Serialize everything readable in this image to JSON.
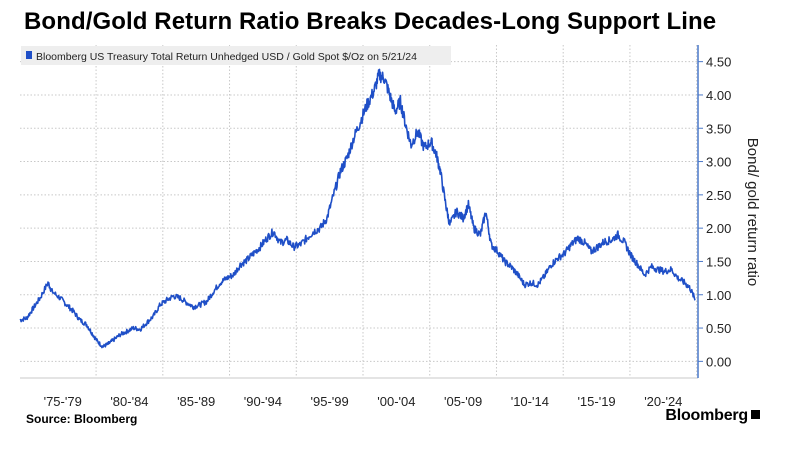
{
  "title": "Bond/Gold Return Ratio Breaks Decades-Long Support Line",
  "source": "Source: Bloomberg",
  "brand": "Bloomberg",
  "colors": {
    "series": "#1f4fc7",
    "axis": "#4a78c9",
    "grid": "#c8c8c8"
  },
  "chart_data": {
    "type": "line",
    "legend": "Bloomberg US Treasury Total Return Unhedged USD / Gold Spot $/Oz on 5/21/24",
    "legend_position": "top-left",
    "ylabel": "Bond/ gold return ratio",
    "y_axis_side": "right",
    "ylim": [
      -0.25,
      4.75
    ],
    "yticks": [
      0,
      0.5,
      1,
      1.5,
      2,
      2.5,
      3,
      3.5,
      4,
      4.5
    ],
    "ytick_labels": [
      "0.00",
      "0.50",
      "1.00",
      "1.50",
      "2.00",
      "2.50",
      "3.00",
      "3.50",
      "4.00",
      "4.50"
    ],
    "grid": true,
    "xlim": [
      1973.8,
      2024.6
    ],
    "x_categories": [
      "'75-'79",
      "'80-'84",
      "'85-'89",
      "'90-'94",
      "'95-'99",
      "'00-'04",
      "'05-'09",
      "'10-'14",
      "'15-'19",
      "'20-'24"
    ],
    "x_category_centers": [
      1977,
      1982,
      1987,
      1992,
      1997,
      2002,
      2007,
      2012,
      2017,
      2022
    ],
    "series": [
      {
        "name": "Bloomberg US Treasury Total Return Unhedged USD / Gold Spot $/Oz",
        "points": [
          [
            1973.8,
            0.62
          ],
          [
            1974.3,
            0.65
          ],
          [
            1974.8,
            0.8
          ],
          [
            1975.3,
            0.95
          ],
          [
            1975.9,
            1.18
          ],
          [
            1976.2,
            1.05
          ],
          [
            1976.8,
            0.95
          ],
          [
            1977.3,
            0.85
          ],
          [
            1977.8,
            0.75
          ],
          [
            1978.3,
            0.62
          ],
          [
            1978.8,
            0.55
          ],
          [
            1979.2,
            0.42
          ],
          [
            1979.6,
            0.3
          ],
          [
            1980.0,
            0.22
          ],
          [
            1980.4,
            0.26
          ],
          [
            1980.8,
            0.32
          ],
          [
            1981.3,
            0.4
          ],
          [
            1981.8,
            0.45
          ],
          [
            1982.3,
            0.5
          ],
          [
            1982.8,
            0.48
          ],
          [
            1983.3,
            0.58
          ],
          [
            1983.8,
            0.68
          ],
          [
            1984.3,
            0.85
          ],
          [
            1984.8,
            0.92
          ],
          [
            1985.3,
            0.98
          ],
          [
            1985.8,
            0.95
          ],
          [
            1986.3,
            0.88
          ],
          [
            1986.8,
            0.82
          ],
          [
            1987.3,
            0.85
          ],
          [
            1987.8,
            0.9
          ],
          [
            1988.3,
            1.05
          ],
          [
            1988.8,
            1.18
          ],
          [
            1989.3,
            1.25
          ],
          [
            1989.8,
            1.3
          ],
          [
            1990.3,
            1.45
          ],
          [
            1990.8,
            1.52
          ],
          [
            1991.3,
            1.62
          ],
          [
            1991.8,
            1.72
          ],
          [
            1992.3,
            1.85
          ],
          [
            1992.8,
            1.95
          ],
          [
            1993.3,
            1.78
          ],
          [
            1993.8,
            1.82
          ],
          [
            1994.3,
            1.72
          ],
          [
            1994.8,
            1.75
          ],
          [
            1995.3,
            1.85
          ],
          [
            1995.8,
            1.95
          ],
          [
            1996.3,
            2.0
          ],
          [
            1996.8,
            2.15
          ],
          [
            1997.3,
            2.5
          ],
          [
            1997.8,
            2.85
          ],
          [
            1998.3,
            3.05
          ],
          [
            1998.8,
            3.35
          ],
          [
            1999.3,
            3.6
          ],
          [
            1999.8,
            3.85
          ],
          [
            2000.3,
            4.05
          ],
          [
            2000.7,
            4.3
          ],
          [
            2001.1,
            4.25
          ],
          [
            2001.5,
            4.0
          ],
          [
            2001.9,
            3.75
          ],
          [
            2002.3,
            3.9
          ],
          [
            2002.7,
            3.55
          ],
          [
            2003.1,
            3.25
          ],
          [
            2003.6,
            3.45
          ],
          [
            2004.1,
            3.2
          ],
          [
            2004.6,
            3.3
          ],
          [
            2005.0,
            3.1
          ],
          [
            2005.3,
            2.85
          ],
          [
            2005.7,
            2.35
          ],
          [
            2006.0,
            2.05
          ],
          [
            2006.5,
            2.25
          ],
          [
            2007.0,
            2.15
          ],
          [
            2007.4,
            2.35
          ],
          [
            2007.8,
            2.0
          ],
          [
            2008.3,
            1.9
          ],
          [
            2008.7,
            2.25
          ],
          [
            2009.1,
            1.75
          ],
          [
            2009.6,
            1.65
          ],
          [
            2010.1,
            1.5
          ],
          [
            2010.6,
            1.42
          ],
          [
            2011.1,
            1.3
          ],
          [
            2011.6,
            1.15
          ],
          [
            2012.1,
            1.18
          ],
          [
            2012.6,
            1.15
          ],
          [
            2013.1,
            1.28
          ],
          [
            2013.6,
            1.45
          ],
          [
            2014.1,
            1.55
          ],
          [
            2014.6,
            1.62
          ],
          [
            2015.1,
            1.75
          ],
          [
            2015.6,
            1.85
          ],
          [
            2016.1,
            1.78
          ],
          [
            2016.6,
            1.65
          ],
          [
            2017.1,
            1.72
          ],
          [
            2017.6,
            1.8
          ],
          [
            2018.1,
            1.82
          ],
          [
            2018.6,
            1.9
          ],
          [
            2019.1,
            1.78
          ],
          [
            2019.6,
            1.58
          ],
          [
            2020.1,
            1.45
          ],
          [
            2020.6,
            1.3
          ],
          [
            2021.1,
            1.42
          ],
          [
            2021.6,
            1.38
          ],
          [
            2022.1,
            1.35
          ],
          [
            2022.6,
            1.38
          ],
          [
            2023.1,
            1.25
          ],
          [
            2023.6,
            1.18
          ],
          [
            2024.0,
            1.1
          ],
          [
            2024.4,
            0.92
          ]
        ]
      }
    ]
  }
}
